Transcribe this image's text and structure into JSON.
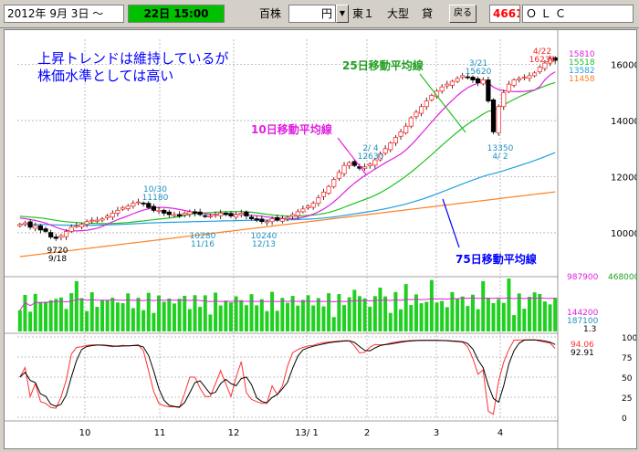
{
  "toolbar": {
    "date_range": "2012年 9月 3日 ～",
    "time": "22日 15:00",
    "unit": "百株",
    "currency": "円",
    "market": "東１",
    "size": "大型",
    "margin_type": "貸",
    "back_label": "戻る",
    "code": "4661",
    "name": "ＯＬＣ"
  },
  "colors": {
    "time_bg": "#00c000",
    "code_text": "#ff0000",
    "ma10": "#e020e0",
    "ma25": "#20c020",
    "ma75": "#20a0e0",
    "ma_long": "#ff8020",
    "candle_up": "#ff3030",
    "candle_down": "#000000",
    "volume": "#20d020",
    "rsi_fast": "#ff3030",
    "rsi_slow": "#000000",
    "annotation_main": "#0000ff"
  },
  "annotations": {
    "main_comment_line1": "上昇トレンドは維持しているが",
    "main_comment_line2": "株価水準としては高い",
    "ma10_label": "10日移動平均線",
    "ma25_label": "25日移動平均線",
    "ma75_label": "75日移動平均線"
  },
  "price_labels": [
    {
      "top": "4/22",
      "bottom": "16230"
    },
    {
      "top": "3/21",
      "bottom": "15620"
    },
    {
      "top": "2/ 4",
      "bottom": "12630"
    },
    {
      "top": "10/30",
      "bottom": "11180"
    },
    {
      "top": "13350",
      "bottom": "4/ 2"
    },
    {
      "top": "10280",
      "bottom": "11/16"
    },
    {
      "top": "10240",
      "bottom": "12/13"
    },
    {
      "top": "9720",
      "bottom": "9/18"
    }
  ],
  "ma_values": {
    "v1": "15810",
    "v2": "15518",
    "v3": "13582",
    "v4": "11458"
  },
  "volume_labels": {
    "max": "987900",
    "axis_top": "468000",
    "avg1": "144200",
    "avg2": "187100",
    "ratio": "1.3"
  },
  "rsi_labels": {
    "fast": "94.06",
    "slow": "92.91"
  },
  "chart_data": {
    "type": "candlestick",
    "x_axis_ticks": [
      "10",
      "11",
      "12",
      "13/ 1",
      "2",
      "3",
      "4"
    ],
    "price_axis": {
      "ticks": [
        10000,
        12000,
        14000,
        16000
      ],
      "ylim": [
        8500,
        16900
      ]
    },
    "volume_axis": {
      "ticks": [
        468000
      ]
    },
    "oscillator_axis": {
      "ticks": [
        0,
        25,
        50,
        75,
        100
      ],
      "ylim": [
        0,
        100
      ]
    },
    "close": [
      10300,
      10350,
      10200,
      10250,
      10100,
      10050,
      9850,
      9800,
      9900,
      10050,
      10200,
      10250,
      10300,
      10400,
      10450,
      10450,
      10500,
      10600,
      10700,
      10800,
      10900,
      10950,
      11050,
      11100,
      11050,
      10900,
      10800,
      10800,
      10700,
      10650,
      10650,
      10600,
      10700,
      10750,
      10700,
      10650,
      10600,
      10600,
      10650,
      10700,
      10650,
      10600,
      10650,
      10700,
      10600,
      10500,
      10450,
      10400,
      10400,
      10500,
      10450,
      10500,
      10550,
      10650,
      10750,
      10850,
      10950,
      11050,
      11250,
      11450,
      11650,
      11900,
      12150,
      12400,
      12500,
      12400,
      12300,
      12350,
      12450,
      12600,
      12800,
      13000,
      13200,
      13400,
      13600,
      13800,
      14100,
      14300,
      14500,
      14700,
      14900,
      15050,
      15200,
      15300,
      15400,
      15500,
      15600,
      15550,
      15450,
      15350,
      15450,
      14700,
      13600,
      14500,
      15000,
      15300,
      15450,
      15500,
      15550,
      15600,
      15700,
      15900,
      16050,
      16200,
      16150
    ]
  }
}
